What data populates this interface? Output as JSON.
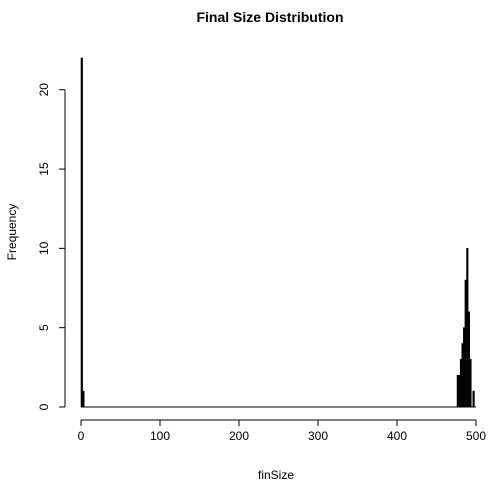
{
  "chart_data": {
    "type": "bar",
    "title": "Final Size Distribution",
    "xlabel": "finSize",
    "ylabel": "Frequency",
    "xlim": [
      0,
      500
    ],
    "ylim": [
      0,
      22
    ],
    "x_ticks": [
      0,
      100,
      200,
      300,
      400,
      500
    ],
    "y_ticks": [
      0,
      5,
      10,
      15,
      20
    ],
    "grid": false,
    "bin_width": 2,
    "bins": [
      {
        "x": 1,
        "count": 22
      },
      {
        "x": 3,
        "count": 1
      },
      {
        "x": 477,
        "count": 2
      },
      {
        "x": 479,
        "count": 2
      },
      {
        "x": 481,
        "count": 3
      },
      {
        "x": 483,
        "count": 4
      },
      {
        "x": 485,
        "count": 5
      },
      {
        "x": 487,
        "count": 8
      },
      {
        "x": 489,
        "count": 10
      },
      {
        "x": 491,
        "count": 6
      },
      {
        "x": 493,
        "count": 3
      },
      {
        "x": 495,
        "count": 0
      },
      {
        "x": 497,
        "count": 1
      }
    ]
  }
}
